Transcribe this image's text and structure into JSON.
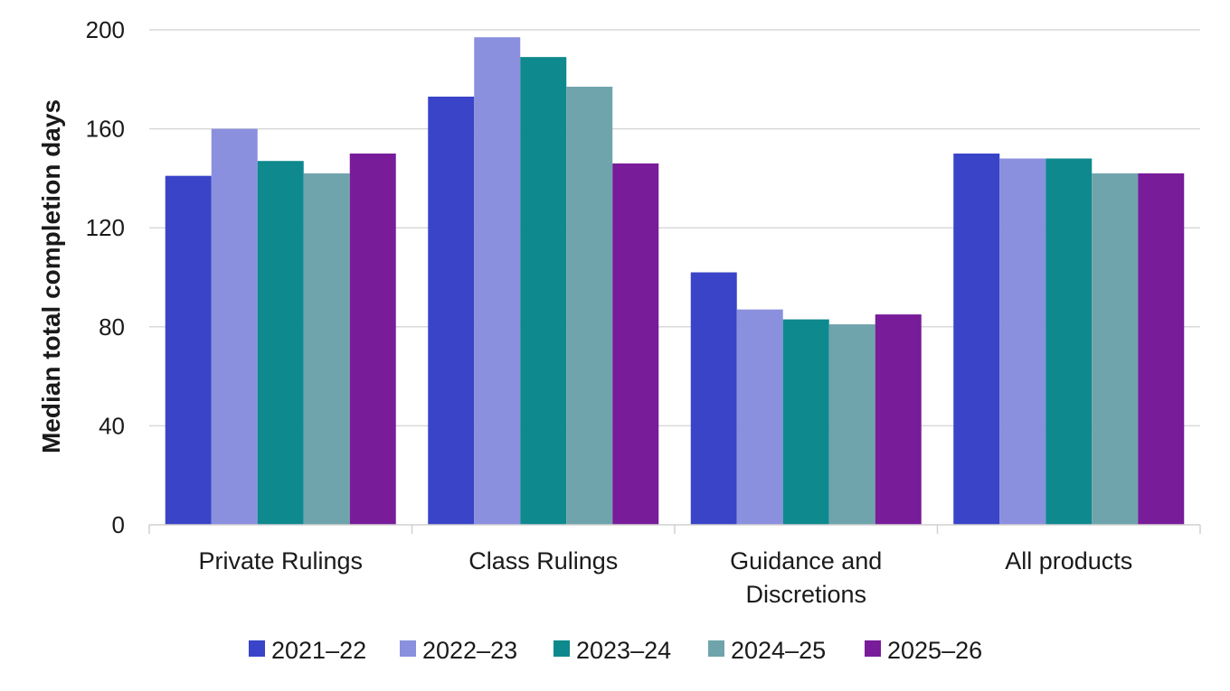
{
  "chart_data": {
    "type": "bar",
    "ylabel": "Median total completion days",
    "ylim": [
      0,
      200
    ],
    "yticks": [
      0,
      40,
      80,
      120,
      160,
      200
    ],
    "grid": true,
    "legend_position": "bottom",
    "categories": [
      [
        "Private Rulings"
      ],
      [
        "Class Rulings"
      ],
      [
        "Guidance and",
        "Discretions"
      ],
      [
        "All products"
      ]
    ],
    "series": [
      {
        "name": "2021–22",
        "color": "#3944c8",
        "values": [
          141,
          173,
          102,
          150
        ]
      },
      {
        "name": "2022–23",
        "color": "#8a90de",
        "values": [
          160,
          197,
          87,
          148
        ]
      },
      {
        "name": "2023–24",
        "color": "#0e898e",
        "values": [
          147,
          189,
          83,
          148
        ]
      },
      {
        "name": "2024–25",
        "color": "#6fa4ac",
        "values": [
          142,
          177,
          81,
          142
        ]
      },
      {
        "name": "2025–26",
        "color": "#781c9a",
        "values": [
          150,
          146,
          85,
          142
        ]
      }
    ]
  }
}
